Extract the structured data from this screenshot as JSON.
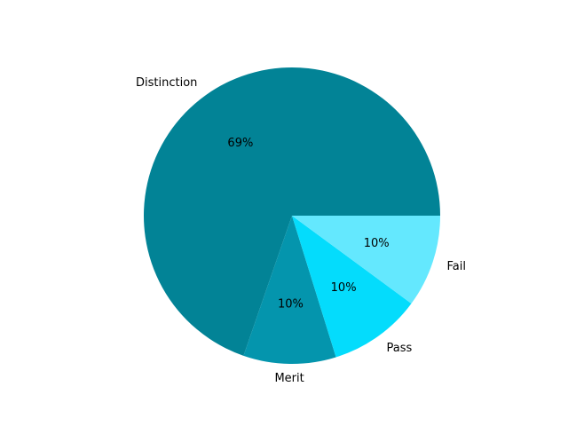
{
  "chart_data": {
    "type": "pie",
    "title": "",
    "categories": [
      "Distinction",
      "Merit",
      "Pass",
      "Fail"
    ],
    "values": [
      69,
      10,
      10,
      10
    ],
    "labels": [
      "69%",
      "10%",
      "10%",
      "10%"
    ],
    "colors": [
      "#028396",
      "#0495ad",
      "#04dcfc",
      "#64e8fe"
    ],
    "start_angle_deg": 0,
    "direction": "counterclockwise"
  }
}
